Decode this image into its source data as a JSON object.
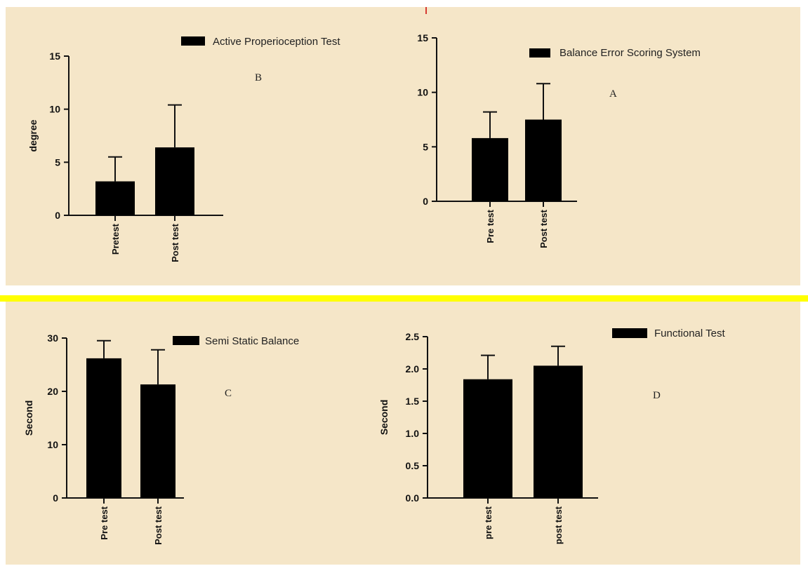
{
  "colors": {
    "panel_bg": "#f5e6c8",
    "divider": "#ffff00",
    "bar": "#000000",
    "marker": "#cc0000"
  },
  "chart_data": [
    {
      "id": "B",
      "type": "bar",
      "panel_letter": "B",
      "legend": "Active Properioception Test",
      "legend_position": "top",
      "ylabel": "degree",
      "xlabel": "",
      "ylim": [
        0,
        15
      ],
      "yticks": [
        "0",
        "5",
        "10",
        "15"
      ],
      "categories": [
        "Pretest",
        "Post test"
      ],
      "values": [
        3.2,
        6.4
      ],
      "errors": [
        2.3,
        4.0
      ]
    },
    {
      "id": "A",
      "type": "bar",
      "panel_letter": "A",
      "legend": "Balance Error Scoring System",
      "legend_position": "top-right",
      "ylabel": "",
      "xlabel": "",
      "ylim": [
        0,
        15
      ],
      "yticks": [
        "0",
        "5",
        "10",
        "15"
      ],
      "categories": [
        "Pre test",
        "Post test"
      ],
      "values": [
        5.8,
        7.5
      ],
      "errors": [
        2.4,
        3.3
      ]
    },
    {
      "id": "C",
      "type": "bar",
      "panel_letter": "C",
      "legend": "Semi Static Balance",
      "legend_position": "top-right",
      "ylabel": "Second",
      "xlabel": "",
      "ylim": [
        0,
        30
      ],
      "yticks": [
        "0",
        "10",
        "20",
        "30"
      ],
      "categories": [
        "Pre test",
        "Post test"
      ],
      "values": [
        26.2,
        21.3
      ],
      "errors": [
        3.3,
        6.5
      ]
    },
    {
      "id": "D",
      "type": "bar",
      "panel_letter": "D",
      "legend": "Functional Test",
      "legend_position": "top-right",
      "ylabel": "Second",
      "xlabel": "",
      "ylim": [
        0,
        2.5
      ],
      "yticks": [
        "0.0",
        "0.5",
        "1.0",
        "1.5",
        "2.0",
        "2.5"
      ],
      "categories": [
        "pre test",
        "post test"
      ],
      "values": [
        1.84,
        2.05
      ],
      "errors": [
        0.37,
        0.3
      ]
    }
  ]
}
